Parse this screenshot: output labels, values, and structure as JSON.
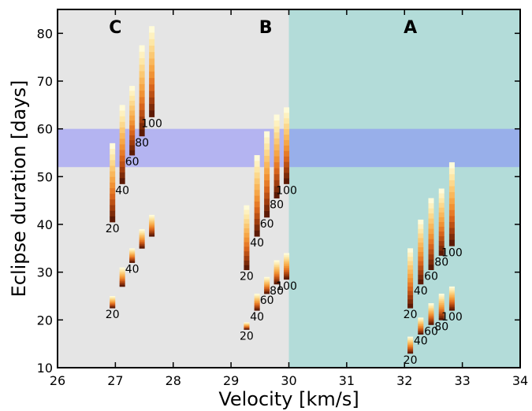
{
  "chart_data": {
    "type": "bar",
    "title": "",
    "xlabel": "Velocity [km/s]",
    "ylabel": "Eclipse duration [days]",
    "xlim": [
      26,
      34
    ],
    "ylim": [
      10,
      85
    ],
    "xticks": [
      26,
      27,
      28,
      29,
      30,
      31,
      32,
      33,
      34
    ],
    "yticks": [
      10,
      20,
      30,
      40,
      50,
      60,
      70,
      80
    ],
    "grid": false,
    "regions": [
      {
        "label": "C",
        "x_range": [
          26,
          30
        ],
        "label_x": 27.0,
        "color": "#e5e5e5"
      },
      {
        "label": "B",
        "x_range": [
          26,
          30
        ],
        "label_x": 29.6,
        "color": "#e5e5e5"
      },
      {
        "label": "A",
        "x_range": [
          30,
          34
        ],
        "label_x": 32.1,
        "color": "#b3dcd9"
      }
    ],
    "horizontal_band": {
      "y_range": [
        52,
        60
      ],
      "color": "#7878ff",
      "opacity": 0.45
    },
    "colormap": [
      "#fffbd9",
      "#fde5a3",
      "#fbc36a",
      "#f59d3c",
      "#e06c1f",
      "#a6400f",
      "#5c1a05"
    ],
    "bar_groups": [
      {
        "x": [
          26.95,
          27.12,
          27.29,
          27.46,
          27.63
        ],
        "bottom": [
          40.5,
          48.5,
          54.5,
          58.5,
          62.5
        ],
        "top": [
          57.0,
          65.0,
          69.0,
          77.5,
          81.5
        ],
        "labels": [
          "20",
          "40",
          "60",
          "80",
          "100"
        ]
      },
      {
        "x": [
          26.95,
          27.12,
          27.29,
          27.46,
          27.63
        ],
        "bottom": [
          22.5,
          27.0,
          32.0,
          35.0,
          37.5
        ],
        "top": [
          25.0,
          31.0,
          35.0,
          39.0,
          42.0
        ],
        "labels": [
          "20",
          "",
          "40",
          "",
          ""
        ]
      },
      {
        "x": [
          29.27,
          29.45,
          29.62,
          29.79,
          29.96
        ],
        "bottom": [
          30.5,
          37.5,
          41.5,
          45.5,
          48.5
        ],
        "top": [
          44.0,
          54.5,
          59.5,
          63.0,
          64.5
        ],
        "labels": [
          "20",
          "40",
          "60",
          "80",
          "100"
        ]
      },
      {
        "x": [
          29.27,
          29.45,
          29.62,
          29.79,
          29.96
        ],
        "bottom": [
          18.0,
          22.0,
          25.5,
          27.5,
          28.5
        ],
        "top": [
          19.5,
          25.5,
          29.0,
          32.5,
          34.0
        ],
        "labels": [
          "20",
          "40",
          "60",
          "80",
          "100"
        ]
      },
      {
        "x": [
          32.1,
          32.28,
          32.46,
          32.64,
          32.82
        ],
        "bottom": [
          22.5,
          27.5,
          30.5,
          33.5,
          35.5
        ],
        "top": [
          35.0,
          41.0,
          45.5,
          47.5,
          53.0
        ],
        "labels": [
          "20",
          "40",
          "60",
          "80",
          "100"
        ]
      },
      {
        "x": [
          32.1,
          32.28,
          32.46,
          32.64,
          32.82
        ],
        "bottom": [
          13.0,
          17.0,
          19.0,
          20.0,
          22.0
        ],
        "top": [
          16.5,
          20.5,
          23.5,
          25.5,
          27.0
        ],
        "labels": [
          "20",
          "40",
          "60",
          "80",
          "100"
        ]
      }
    ],
    "second_group_labels": {
      "C": [
        "40",
        "60",
        "80",
        "100"
      ]
    }
  }
}
